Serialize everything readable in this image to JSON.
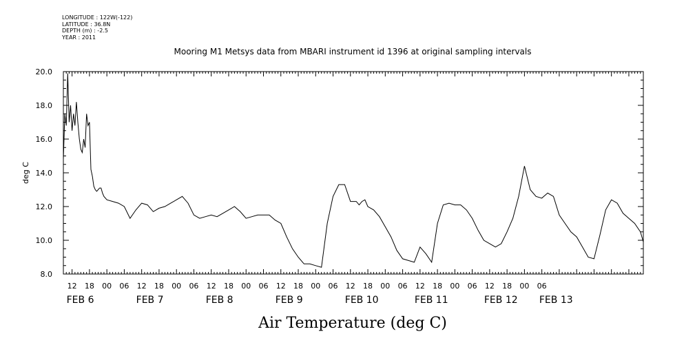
{
  "header": {
    "longitude": "LONGITUDE : 122W(-122)",
    "latitude": "LATITUDE : 36.8N",
    "depth": "DEPTH (m) : -2.5",
    "year": "YEAR : 2011"
  },
  "chart_data": {
    "type": "line",
    "title": "Mooring M1 Metsys data from MBARI instrument id 1396 at original sampling intervals",
    "xlabel": "Air Temperature (deg C)",
    "ylabel": "deg C",
    "ylim": [
      8.0,
      20.0
    ],
    "yticks": [
      "8.0",
      "10.0",
      "12.0",
      "14.0",
      "16.0",
      "18.0",
      "20.0"
    ],
    "xlim_hours": [
      9,
      209
    ],
    "hour_labels": [
      "12",
      "18",
      "00",
      "06",
      "12",
      "18",
      "00",
      "06",
      "12",
      "18",
      "00",
      "06",
      "12",
      "18",
      "00",
      "06",
      "12",
      "18",
      "00",
      "06",
      "12",
      "18",
      "00",
      "06",
      "12",
      "18",
      "00",
      "06"
    ],
    "date_labels": [
      "FEB  6",
      "FEB  7",
      "FEB  8",
      "FEB  9",
      "FEB 10",
      "FEB 11",
      "FEB 12",
      "FEB 13"
    ],
    "grid": false,
    "series": [
      {
        "x": [
          9,
          9.5,
          10,
          10.5,
          11,
          11.5,
          12,
          12.5,
          13,
          13.5,
          14,
          14.5,
          15,
          15.5,
          16,
          16.5,
          17,
          17.5,
          18,
          18.5,
          19,
          19.5,
          20,
          20.5,
          21,
          21.5,
          22,
          22.5,
          23,
          24,
          26,
          28,
          30,
          32,
          34,
          36,
          38,
          40,
          42,
          44,
          46,
          48,
          50,
          52,
          54,
          56,
          58,
          60,
          62,
          64,
          66,
          68,
          70,
          72,
          74,
          76,
          78,
          80,
          82,
          84,
          86,
          88,
          90,
          92,
          94,
          96,
          98,
          100,
          102,
          104,
          106,
          108,
          110,
          111,
          112,
          113,
          114,
          116,
          118,
          120,
          122,
          124,
          126,
          128,
          130,
          132,
          134,
          136,
          138,
          140,
          142,
          144,
          146,
          148,
          150,
          152,
          154,
          156,
          158,
          160,
          162,
          164,
          166,
          168,
          170,
          172,
          174,
          176,
          178,
          180,
          182,
          184,
          186,
          188,
          190,
          192,
          194,
          196,
          198,
          200,
          202,
          204,
          206,
          208,
          209
        ],
        "values": [
          14.8,
          17.5,
          16.8,
          19.9,
          17.0,
          18.0,
          16.5,
          17.5,
          16.8,
          18.2,
          17.0,
          16.0,
          15.4,
          15.2,
          16.0,
          15.5,
          17.5,
          16.8,
          17.0,
          14.2,
          13.8,
          13.2,
          13.0,
          12.9,
          13.0,
          13.1,
          13.1,
          12.8,
          12.6,
          12.4,
          12.3,
          12.2,
          12.0,
          11.3,
          11.8,
          12.2,
          12.1,
          11.7,
          11.9,
          12.0,
          12.2,
          12.4,
          12.6,
          12.2,
          11.5,
          11.3,
          11.4,
          11.5,
          11.4,
          11.6,
          11.8,
          12.0,
          11.7,
          11.3,
          11.4,
          11.5,
          11.5,
          11.5,
          11.2,
          11.0,
          10.2,
          9.5,
          9.0,
          8.6,
          8.6,
          8.5,
          8.4,
          11.0,
          12.6,
          13.3,
          13.3,
          12.3,
          12.3,
          12.1,
          12.3,
          12.4,
          12.0,
          11.8,
          11.4,
          10.8,
          10.2,
          9.4,
          8.9,
          8.8,
          8.7,
          9.6,
          9.2,
          8.7,
          11.0,
          12.1,
          12.2,
          12.1,
          12.1,
          11.8,
          11.3,
          10.6,
          10.0,
          9.8,
          9.6,
          9.8,
          10.5,
          11.3,
          12.6,
          14.4,
          13.0,
          12.6,
          12.5,
          12.8,
          12.6,
          11.5,
          11.0,
          10.5,
          10.2,
          9.6,
          9.0,
          8.9,
          10.3,
          11.8,
          12.4,
          12.2,
          11.6,
          11.3,
          11.0,
          10.5,
          9.9
        ]
      }
    ]
  }
}
